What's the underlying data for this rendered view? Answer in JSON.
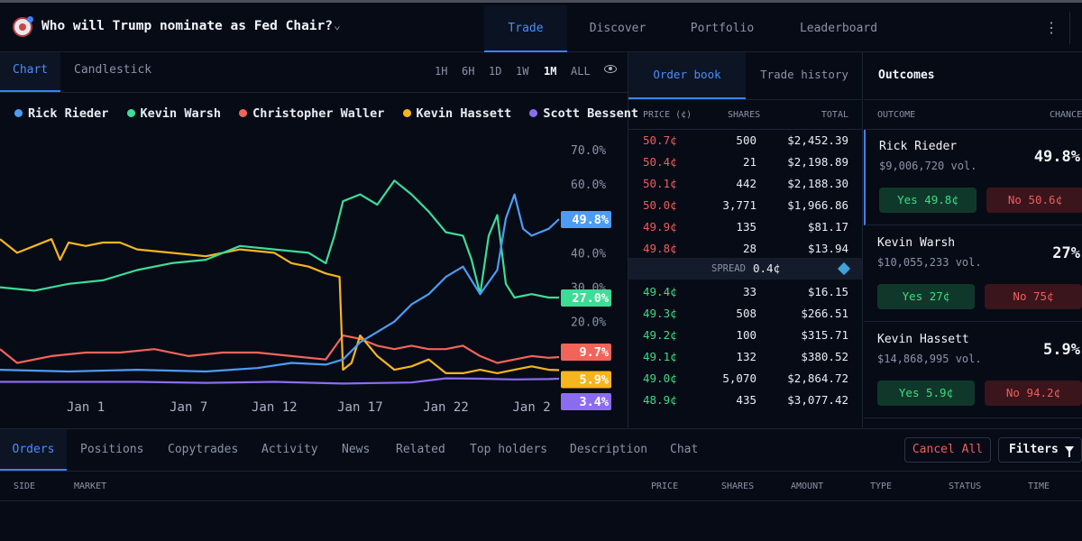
{
  "header": {
    "market_title": "Who will Trump nominate as Fed Chair?",
    "nav": [
      "Trade",
      "Discover",
      "Portfolio",
      "Leaderboard"
    ],
    "active_nav": "Trade"
  },
  "chart_panel": {
    "tabs": [
      "Chart",
      "Candlestick"
    ],
    "ranges": [
      "1H",
      "6H",
      "1D",
      "1W",
      "1M",
      "ALL"
    ],
    "active_range": "1M"
  },
  "chart_data": {
    "type": "line",
    "title": "",
    "xlabel": "",
    "ylabel": "",
    "ylim": [
      0,
      70
    ],
    "y_ticks": [
      "20.0%",
      "30.0%",
      "40.0%",
      "60.0%",
      "70.0%"
    ],
    "x_ticks": [
      {
        "label": "Jan 1",
        "x": 5
      },
      {
        "label": "Jan 7",
        "x": 11
      },
      {
        "label": "Jan 12",
        "x": 16
      },
      {
        "label": "Jan 17",
        "x": 21
      },
      {
        "label": "Jan 22",
        "x": 26
      },
      {
        "label": "Jan 2",
        "x": 31
      }
    ],
    "x_domain": [
      0,
      32.6
    ],
    "series": [
      {
        "name": "Rick Rieder",
        "color": "#4c9cf5",
        "end_label": "49.8%",
        "points": [
          [
            0,
            6
          ],
          [
            4,
            5.5
          ],
          [
            8,
            6
          ],
          [
            12,
            5.5
          ],
          [
            15,
            6.5
          ],
          [
            17,
            8
          ],
          [
            19,
            7.5
          ],
          [
            20,
            9
          ],
          [
            21,
            14
          ],
          [
            22,
            17
          ],
          [
            23,
            20
          ],
          [
            24,
            25
          ],
          [
            25,
            28
          ],
          [
            26,
            33
          ],
          [
            27,
            36
          ],
          [
            28,
            28
          ],
          [
            29,
            35
          ],
          [
            29.5,
            50
          ],
          [
            30,
            57
          ],
          [
            30.5,
            47
          ],
          [
            31,
            45
          ],
          [
            32,
            47
          ],
          [
            32.6,
            49.8
          ]
        ]
      },
      {
        "name": "Kevin Warsh",
        "color": "#3ddc97",
        "end_label": "27.0%",
        "points": [
          [
            0,
            30
          ],
          [
            2,
            29
          ],
          [
            4,
            31
          ],
          [
            6,
            32
          ],
          [
            8,
            35
          ],
          [
            10,
            37
          ],
          [
            12,
            38
          ],
          [
            14,
            42
          ],
          [
            16,
            41
          ],
          [
            18,
            40
          ],
          [
            19,
            37
          ],
          [
            19.5,
            45
          ],
          [
            20,
            55
          ],
          [
            21,
            57
          ],
          [
            22,
            54
          ],
          [
            23,
            61
          ],
          [
            24,
            57
          ],
          [
            25,
            52
          ],
          [
            26,
            46
          ],
          [
            27,
            45
          ],
          [
            27.5,
            38
          ],
          [
            28,
            28
          ],
          [
            28.5,
            45
          ],
          [
            29,
            51
          ],
          [
            29.5,
            31
          ],
          [
            30,
            27
          ],
          [
            31,
            28
          ],
          [
            32,
            27
          ],
          [
            32.6,
            27
          ]
        ]
      },
      {
        "name": "Christopher Waller",
        "color": "#f2645a",
        "end_label": "9.7%",
        "points": [
          [
            0,
            12
          ],
          [
            1,
            8
          ],
          [
            3,
            10
          ],
          [
            5,
            11
          ],
          [
            7,
            11
          ],
          [
            9,
            12
          ],
          [
            11,
            10
          ],
          [
            13,
            11
          ],
          [
            15,
            11
          ],
          [
            17,
            10
          ],
          [
            19,
            9
          ],
          [
            20,
            16
          ],
          [
            21,
            15
          ],
          [
            22,
            13
          ],
          [
            23,
            12
          ],
          [
            24,
            13
          ],
          [
            25,
            12
          ],
          [
            26,
            12
          ],
          [
            27,
            13
          ],
          [
            28,
            10
          ],
          [
            29,
            8
          ],
          [
            30,
            9
          ],
          [
            31,
            10
          ],
          [
            32,
            9.5
          ],
          [
            32.6,
            9.7
          ]
        ]
      },
      {
        "name": "Kevin Hassett",
        "color": "#f5b51d",
        "end_label": "5.9%",
        "points": [
          [
            0,
            44
          ],
          [
            1,
            40
          ],
          [
            2,
            42
          ],
          [
            3,
            44
          ],
          [
            3.5,
            38
          ],
          [
            4,
            43
          ],
          [
            5,
            42
          ],
          [
            6,
            43
          ],
          [
            7,
            43
          ],
          [
            8,
            41
          ],
          [
            10,
            40
          ],
          [
            12,
            39
          ],
          [
            14,
            41
          ],
          [
            16,
            40
          ],
          [
            17,
            37
          ],
          [
            18,
            36
          ],
          [
            19,
            34
          ],
          [
            19.8,
            33
          ],
          [
            20,
            6
          ],
          [
            20.5,
            8
          ],
          [
            21,
            16
          ],
          [
            22,
            10
          ],
          [
            23,
            6
          ],
          [
            24,
            7
          ],
          [
            25,
            9
          ],
          [
            26,
            5
          ],
          [
            27,
            5
          ],
          [
            28,
            6
          ],
          [
            29,
            5
          ],
          [
            30,
            6
          ],
          [
            31,
            7
          ],
          [
            32,
            6
          ],
          [
            32.6,
            5.9
          ]
        ]
      },
      {
        "name": "Scott Bessent",
        "color": "#8b6cf0",
        "end_label": "3.4%",
        "points": [
          [
            0,
            2.5
          ],
          [
            4,
            2.5
          ],
          [
            8,
            2.5
          ],
          [
            12,
            2.2
          ],
          [
            16,
            2.5
          ],
          [
            20,
            2
          ],
          [
            24,
            2.3
          ],
          [
            26,
            3.5
          ],
          [
            28,
            3.4
          ],
          [
            30,
            3.2
          ],
          [
            32,
            3.3
          ],
          [
            32.6,
            3.4
          ]
        ]
      }
    ]
  },
  "order_book": {
    "tabs": [
      "Order book",
      "Trade history"
    ],
    "headers": {
      "price": "PRICE (¢)",
      "shares": "SHARES",
      "total": "TOTAL"
    },
    "asks": [
      {
        "price": "50.7¢",
        "shares": "500",
        "total": "$2,452.39"
      },
      {
        "price": "50.4¢",
        "shares": "21",
        "total": "$2,198.89"
      },
      {
        "price": "50.1¢",
        "shares": "442",
        "total": "$2,188.30"
      },
      {
        "price": "50.0¢",
        "shares": "3,771",
        "total": "$1,966.86"
      },
      {
        "price": "49.9¢",
        "shares": "135",
        "total": "$81.17"
      },
      {
        "price": "49.8¢",
        "shares": "28",
        "total": "$13.94"
      }
    ],
    "spread": {
      "label": "SPREAD",
      "value": "0.4¢"
    },
    "bids": [
      {
        "price": "49.4¢",
        "shares": "33",
        "total": "$16.15"
      },
      {
        "price": "49.3¢",
        "shares": "508",
        "total": "$266.51"
      },
      {
        "price": "49.2¢",
        "shares": "100",
        "total": "$315.71"
      },
      {
        "price": "49.1¢",
        "shares": "132",
        "total": "$380.52"
      },
      {
        "price": "49.0¢",
        "shares": "5,070",
        "total": "$2,864.72"
      },
      {
        "price": "48.9¢",
        "shares": "435",
        "total": "$3,077.42"
      }
    ]
  },
  "outcomes": {
    "title": "Outcomes",
    "headers": {
      "outcome": "OUTCOME",
      "chance": "CHANCE"
    },
    "items": [
      {
        "name": "Rick Rieder",
        "volume": "$9,006,720 vol.",
        "chance": "49.8%",
        "yes": "Yes 49.8¢",
        "no": "No 50.6¢"
      },
      {
        "name": "Kevin Warsh",
        "volume": "$10,055,233 vol.",
        "chance": "27%",
        "yes": "Yes 27¢",
        "no": "No 75¢"
      },
      {
        "name": "Kevin Hassett",
        "volume": "$14,868,995 vol.",
        "chance": "5.9%",
        "yes": "Yes 5.9¢",
        "no": "No 94.2¢"
      }
    ]
  },
  "bottom": {
    "tabs": [
      "Orders",
      "Positions",
      "Copytrades",
      "Activity",
      "News",
      "Related",
      "Top holders",
      "Description",
      "Chat"
    ],
    "active_tab": "Orders",
    "cancel_all": "Cancel All",
    "filters": "Filters",
    "columns": [
      "SIDE",
      "MARKET",
      "PRICE",
      "SHARES",
      "AMOUNT",
      "TYPE",
      "STATUS",
      "TIME"
    ]
  }
}
